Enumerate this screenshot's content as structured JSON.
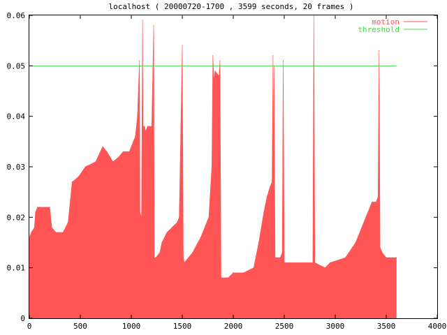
{
  "chart_data": {
    "type": "area",
    "title": "localhost ( 20000720-1700 , 3599 seconds, 20 frames )",
    "xlabel": "",
    "ylabel": "",
    "xlim": [
      0,
      4000
    ],
    "ylim": [
      0,
      0.06
    ],
    "x_ticks": [
      "0",
      "500",
      "1000",
      "1500",
      "2000",
      "2500",
      "3000",
      "3500",
      "4000"
    ],
    "y_ticks": [
      "0",
      "0.01",
      "0.02",
      "0.03",
      "0.04",
      "0.05",
      "0.06"
    ],
    "grid": false,
    "legend_position": "top-right",
    "series": [
      {
        "name": "motion",
        "color": "#ff5555",
        "x": [
          0,
          20,
          50,
          60,
          80,
          100,
          200,
          220,
          260,
          330,
          380,
          420,
          480,
          550,
          650,
          720,
          760,
          820,
          880,
          920,
          980,
          1040,
          1060,
          1080,
          1085,
          1100,
          1110,
          1115,
          1130,
          1140,
          1160,
          1200,
          1220,
          1225,
          1240,
          1280,
          1300,
          1350,
          1400,
          1450,
          1470,
          1500,
          1510,
          1520,
          1560,
          1600,
          1680,
          1760,
          1790,
          1800,
          1810,
          1820,
          1860,
          1870,
          1880,
          1890,
          1950,
          2000,
          2100,
          2200,
          2250,
          2300,
          2330,
          2360,
          2380,
          2390,
          2395,
          2400,
          2410,
          2420,
          2440,
          2460,
          2480,
          2490,
          2500,
          2600,
          2700,
          2780,
          2790,
          2800,
          2900,
          2950,
          3100,
          3200,
          3300,
          3360,
          3400,
          3420,
          3430,
          3440,
          3460,
          3500,
          3540,
          3560,
          3599
        ],
        "y": [
          0.016,
          0.017,
          0.018,
          0.021,
          0.022,
          0.022,
          0.022,
          0.018,
          0.017,
          0.017,
          0.019,
          0.027,
          0.028,
          0.03,
          0.031,
          0.034,
          0.033,
          0.031,
          0.032,
          0.033,
          0.033,
          0.036,
          0.04,
          0.051,
          0.021,
          0.02,
          0.059,
          0.038,
          0.038,
          0.037,
          0.038,
          0.038,
          0.058,
          0.012,
          0.012,
          0.013,
          0.015,
          0.017,
          0.018,
          0.019,
          0.02,
          0.054,
          0.012,
          0.011,
          0.012,
          0.013,
          0.016,
          0.02,
          0.03,
          0.052,
          0.047,
          0.049,
          0.048,
          0.051,
          0.008,
          0.008,
          0.008,
          0.009,
          0.009,
          0.01,
          0.015,
          0.021,
          0.024,
          0.026,
          0.027,
          0.052,
          0.028,
          0.05,
          0.012,
          0.012,
          0.012,
          0.012,
          0.013,
          0.051,
          0.011,
          0.011,
          0.011,
          0.011,
          0.06,
          0.011,
          0.01,
          0.011,
          0.012,
          0.015,
          0.02,
          0.023,
          0.023,
          0.024,
          0.053,
          0.014,
          0.013,
          0.012,
          0.012,
          0.012,
          0.012
        ]
      },
      {
        "name": "threshold",
        "color": "#44dd44",
        "x": [
          0,
          3599
        ],
        "y": [
          0.05,
          0.05
        ]
      }
    ]
  }
}
